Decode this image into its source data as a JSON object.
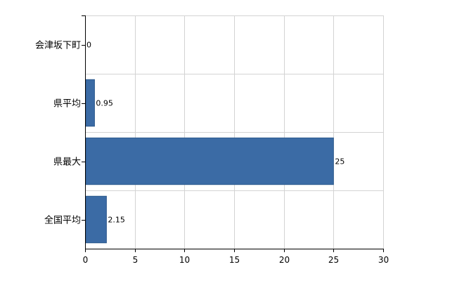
{
  "chart_data": {
    "type": "bar",
    "orientation": "horizontal",
    "categories": [
      "会津坂下町",
      "県平均",
      "県最大",
      "全国平均"
    ],
    "values": [
      0,
      0.95,
      25,
      2.15
    ],
    "value_labels": [
      "0",
      "0.95",
      "25",
      "2.15"
    ],
    "xlim": [
      0,
      30
    ],
    "xticks": [
      0,
      5,
      10,
      15,
      20,
      25,
      30
    ],
    "grid": true,
    "legend": "none",
    "colors": {
      "bar": "#3b6ba5",
      "bar_edge": "#2e5a8e",
      "grid": "#d3d3d3",
      "axis": "#000000"
    }
  }
}
